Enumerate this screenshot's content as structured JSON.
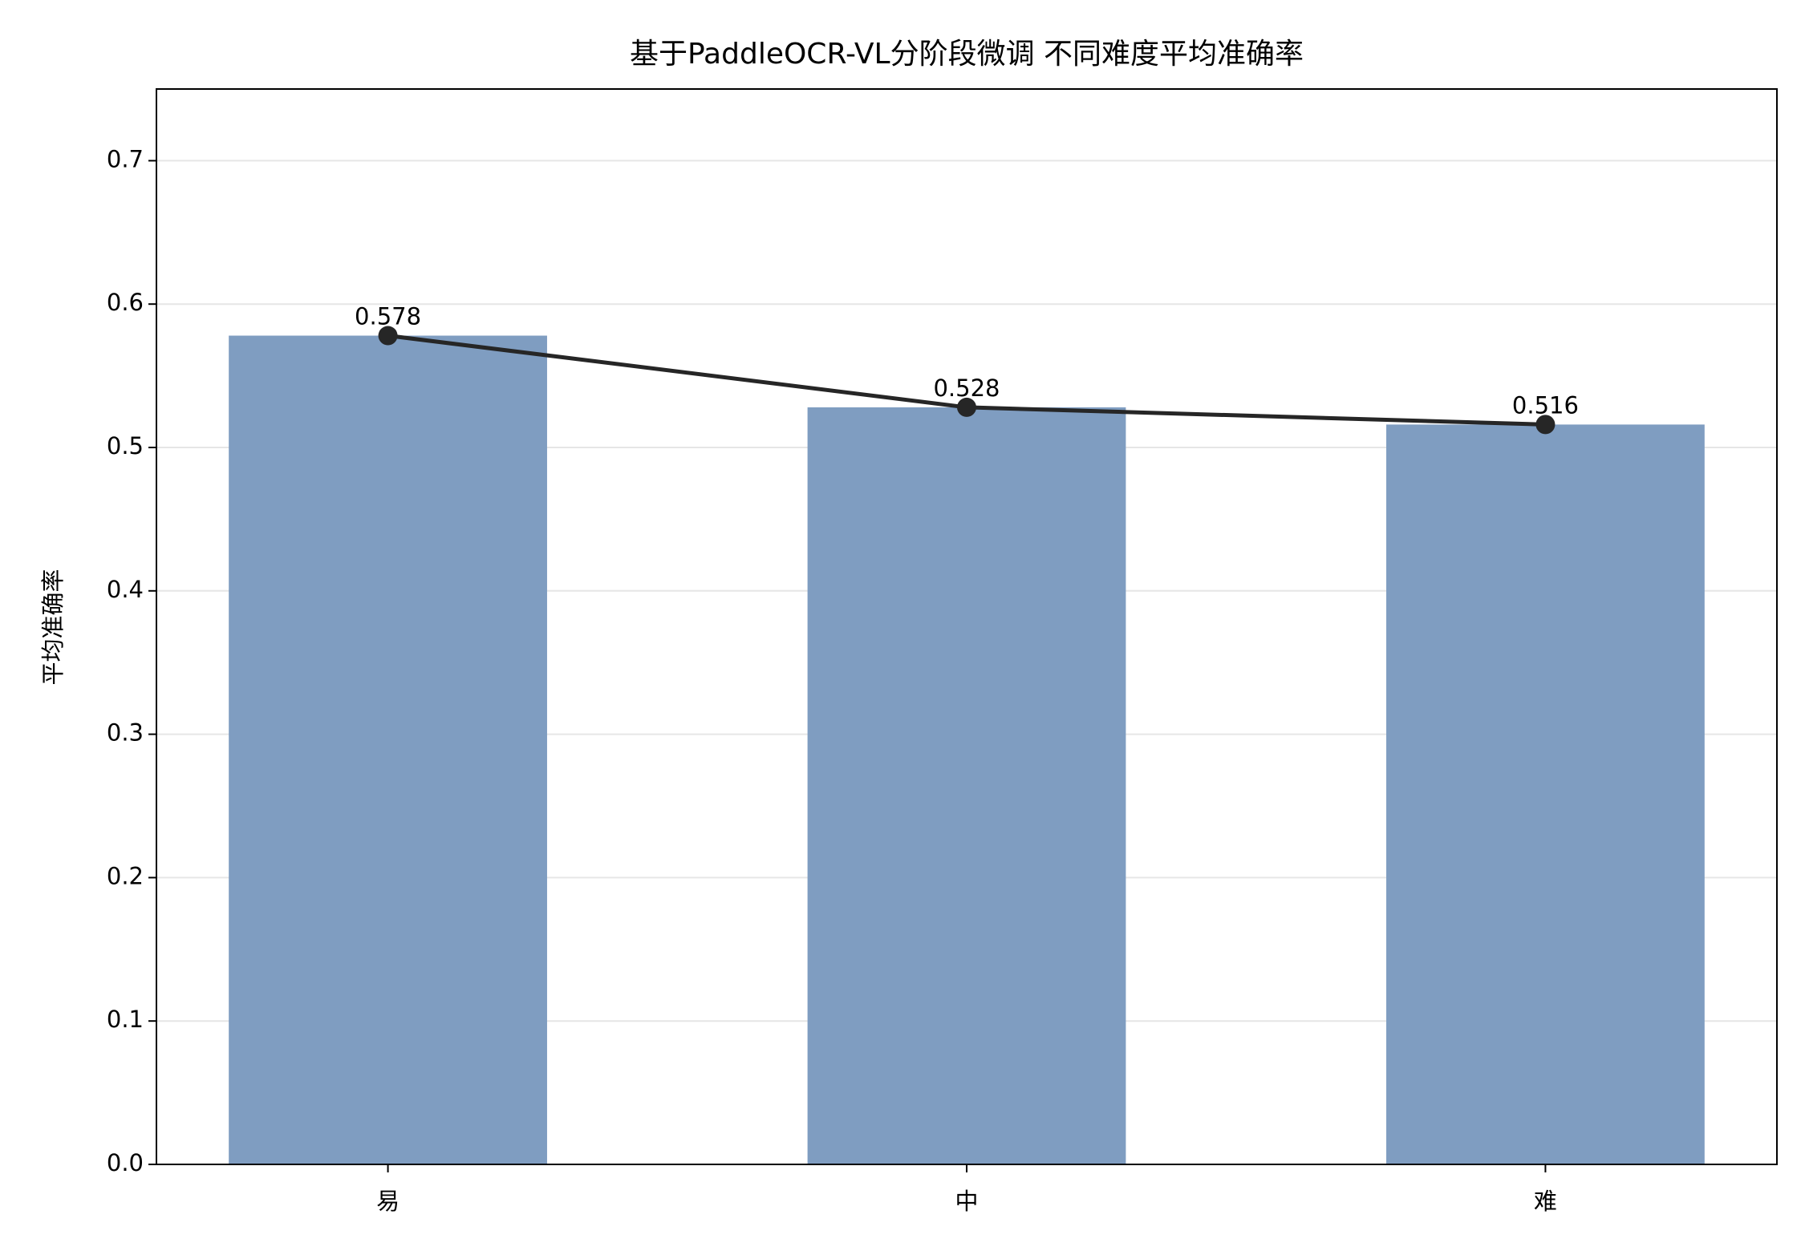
{
  "chart_data": {
    "type": "bar",
    "title": "基于PaddleOCR-VL分阶段微调 不同难度平均准确率",
    "y_label": "平均准确率",
    "categories": [
      "易",
      "中",
      "难"
    ],
    "values": [
      0.578,
      0.528,
      0.516
    ],
    "color": "#7f9dc1",
    "line_overlay": true,
    "line_color": "#262626",
    "ylim": [
      0,
      0.75
    ],
    "yticks": [
      {
        "value": 0,
        "label": "0.0"
      },
      0.1,
      0.2,
      0.3,
      0.4,
      0.5,
      0.6,
      0.7
    ],
    "grid": true
  }
}
